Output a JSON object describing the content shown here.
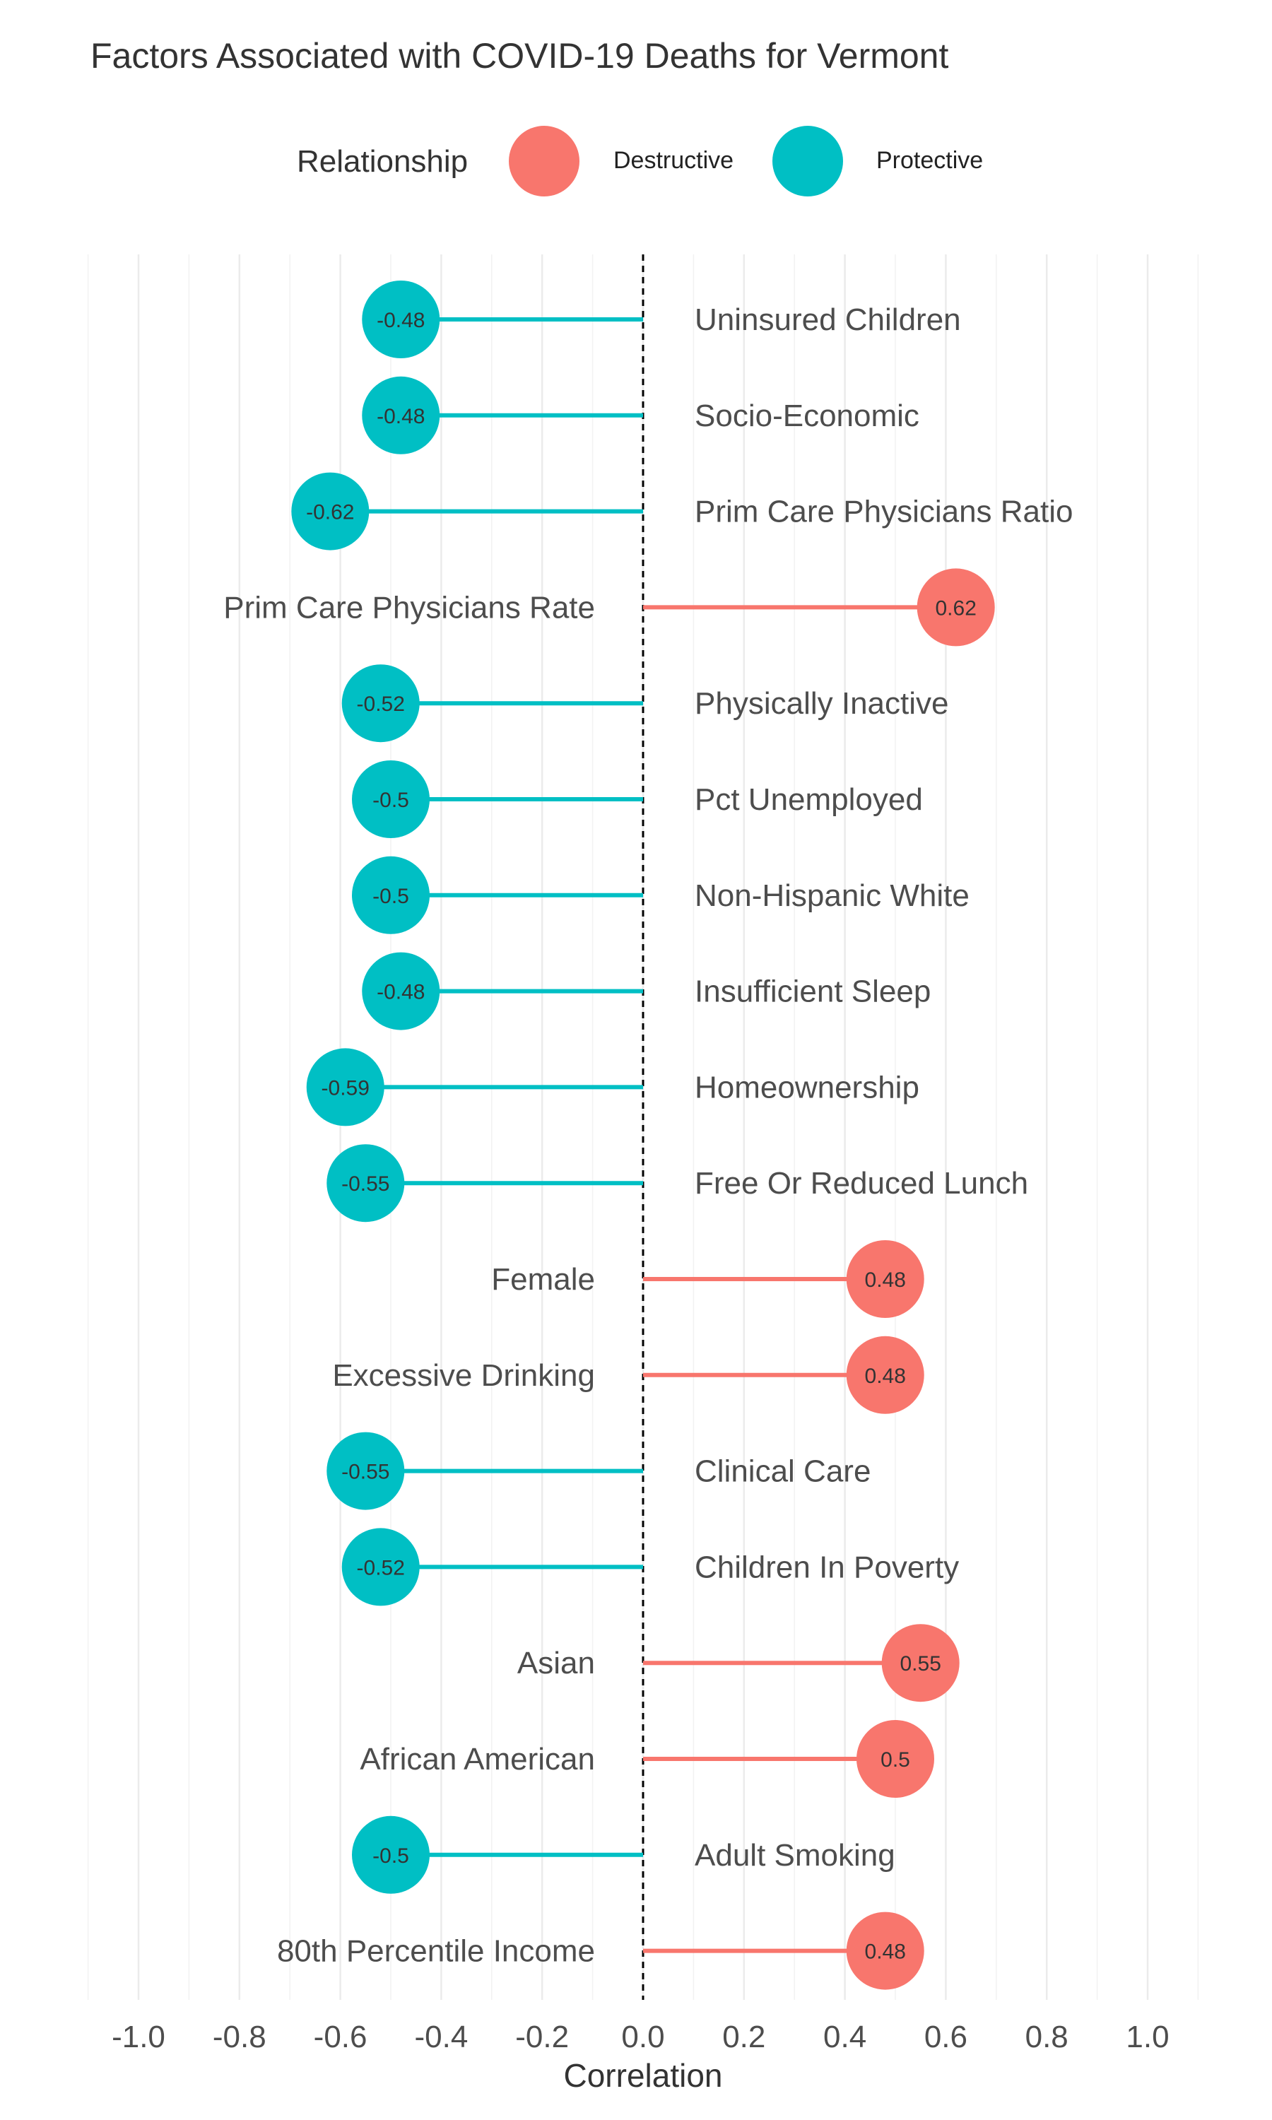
{
  "chart_data": {
    "type": "lollipop",
    "title": "Factors Associated with COVID-19 Deaths for Vermont",
    "xlabel": "Correlation",
    "ylabel": "",
    "xlim": [
      -1.1,
      1.1
    ],
    "xticks": [
      -1.0,
      -0.8,
      -0.6,
      -0.4,
      -0.2,
      0.0,
      0.2,
      0.4,
      0.6,
      0.8,
      1.0
    ],
    "xtick_labels": [
      "-1.0",
      "-0.8",
      "-0.6",
      "-0.4",
      "-0.2",
      "0.0",
      "0.2",
      "0.4",
      "0.6",
      "0.8",
      "1.0"
    ],
    "grid": true,
    "legend": {
      "title": "Relationship",
      "position": "top",
      "entries": [
        {
          "name": "Destructive",
          "color": "#F8766D"
        },
        {
          "name": "Protective",
          "color": "#00BFC4"
        }
      ]
    },
    "points": [
      {
        "label": "Uninsured Children",
        "value": -0.48,
        "value_label": "-0.48",
        "relationship": "Protective"
      },
      {
        "label": "Socio-Economic",
        "value": -0.48,
        "value_label": "-0.48",
        "relationship": "Protective"
      },
      {
        "label": "Prim Care Physicians Ratio",
        "value": -0.62,
        "value_label": "-0.62",
        "relationship": "Protective"
      },
      {
        "label": "Prim Care Physicians Rate",
        "value": 0.62,
        "value_label": "0.62",
        "relationship": "Destructive"
      },
      {
        "label": "Physically Inactive",
        "value": -0.52,
        "value_label": "-0.52",
        "relationship": "Protective"
      },
      {
        "label": "Pct Unemployed",
        "value": -0.5,
        "value_label": "-0.5",
        "relationship": "Protective"
      },
      {
        "label": "Non-Hispanic White",
        "value": -0.5,
        "value_label": "-0.5",
        "relationship": "Protective"
      },
      {
        "label": "Insufficient Sleep",
        "value": -0.48,
        "value_label": "-0.48",
        "relationship": "Protective"
      },
      {
        "label": "Homeownership",
        "value": -0.59,
        "value_label": "-0.59",
        "relationship": "Protective"
      },
      {
        "label": "Free Or Reduced Lunch",
        "value": -0.55,
        "value_label": "-0.55",
        "relationship": "Protective"
      },
      {
        "label": "Female",
        "value": 0.48,
        "value_label": "0.48",
        "relationship": "Destructive"
      },
      {
        "label": "Excessive Drinking",
        "value": 0.48,
        "value_label": "0.48",
        "relationship": "Destructive"
      },
      {
        "label": "Clinical Care",
        "value": -0.55,
        "value_label": "-0.55",
        "relationship": "Protective"
      },
      {
        "label": "Children In Poverty",
        "value": -0.52,
        "value_label": "-0.52",
        "relationship": "Protective"
      },
      {
        "label": "Asian",
        "value": 0.55,
        "value_label": "0.55",
        "relationship": "Destructive"
      },
      {
        "label": "African American",
        "value": 0.5,
        "value_label": "0.5",
        "relationship": "Destructive"
      },
      {
        "label": "Adult Smoking",
        "value": -0.5,
        "value_label": "-0.5",
        "relationship": "Protective"
      },
      {
        "label": "80th Percentile Income",
        "value": 0.48,
        "value_label": "0.48",
        "relationship": "Destructive"
      }
    ]
  }
}
